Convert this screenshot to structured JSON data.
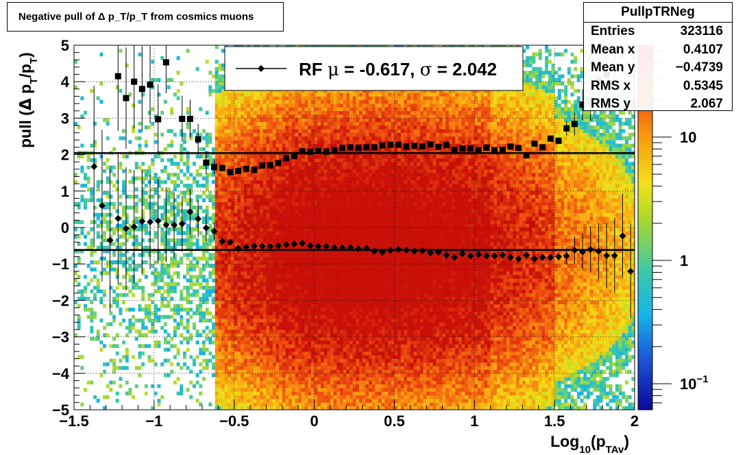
{
  "title": "Negative pull of Δ p_T/p_T from cosmics muons",
  "stats": {
    "name": "PullpTRNeg",
    "rows": [
      {
        "label": "Entries",
        "value": "323116"
      },
      {
        "label": "Mean x",
        "value": "0.4107"
      },
      {
        "label": "Mean y",
        "value": "−0.4739"
      },
      {
        "label": "RMS x",
        "value": "0.5345"
      },
      {
        "label": "RMS y",
        "value": "2.067"
      }
    ]
  },
  "legend": {
    "label_prefix": "RF",
    "mu_symbol": "μ",
    "mu_value": "= -0.617,",
    "sigma_symbol": "σ",
    "sigma_value": "=   2.042"
  },
  "colors": {
    "profile_markers": "#000000",
    "fit_lines": "#000000",
    "palette_low": "#0a0a9a",
    "palette_high": "#e02010"
  },
  "chart_data": {
    "type": "heatmap",
    "xlabel": "Log10(pTAv)",
    "ylabel": "pull (Δ pT/pT)",
    "xlim": [
      -1.5,
      2
    ],
    "ylim": [
      -5,
      5
    ],
    "log_z": true,
    "grid": true,
    "x_ticks": [
      "−1.5",
      "−1",
      "−0.5",
      "0",
      "0.5",
      "1",
      "1.5",
      "2"
    ],
    "y_ticks": [
      "−5",
      "−4",
      "−3",
      "−2",
      "−1",
      "0",
      "1",
      "2",
      "3",
      "4",
      "5"
    ],
    "z_ticks": [
      "10",
      "1",
      "10⁻¹"
    ],
    "horizontal_lines": [
      {
        "name": "sigma",
        "y": 2.042
      },
      {
        "name": "mu",
        "y": -0.617
      }
    ],
    "series": [
      {
        "name": "sigma",
        "marker": "square",
        "points": [
          [
            -1.225,
            4.15
          ],
          [
            -1.175,
            3.55
          ],
          [
            -1.125,
            4.0
          ],
          [
            -1.075,
            3.8
          ],
          [
            -1.025,
            3.92
          ],
          [
            -0.975,
            2.97
          ],
          [
            -0.925,
            4.53
          ],
          [
            -0.825,
            2.98
          ],
          [
            -0.775,
            2.98
          ],
          [
            -0.725,
            2.42
          ],
          [
            -0.675,
            1.78
          ],
          [
            -0.625,
            1.66
          ],
          [
            -0.575,
            1.63
          ],
          [
            -0.525,
            1.52
          ],
          [
            -0.475,
            1.55
          ],
          [
            -0.425,
            1.61
          ],
          [
            -0.375,
            1.58
          ],
          [
            -0.325,
            1.7
          ],
          [
            -0.275,
            1.71
          ],
          [
            -0.225,
            1.77
          ],
          [
            -0.175,
            1.9
          ],
          [
            -0.125,
            1.96
          ],
          [
            -0.075,
            2.09
          ],
          [
            -0.025,
            2.08
          ],
          [
            0.025,
            2.1
          ],
          [
            0.075,
            2.08
          ],
          [
            0.125,
            2.12
          ],
          [
            0.175,
            2.18
          ],
          [
            0.225,
            2.2
          ],
          [
            0.275,
            2.18
          ],
          [
            0.325,
            2.2
          ],
          [
            0.375,
            2.2
          ],
          [
            0.425,
            2.25
          ],
          [
            0.475,
            2.27
          ],
          [
            0.525,
            2.27
          ],
          [
            0.575,
            2.22
          ],
          [
            0.625,
            2.24
          ],
          [
            0.675,
            2.22
          ],
          [
            0.725,
            2.28
          ],
          [
            0.775,
            2.21
          ],
          [
            0.825,
            2.26
          ],
          [
            0.875,
            2.13
          ],
          [
            0.925,
            2.17
          ],
          [
            0.975,
            2.17
          ],
          [
            1.025,
            2.12
          ],
          [
            1.075,
            2.19
          ],
          [
            1.125,
            2.12
          ],
          [
            1.175,
            2.13
          ],
          [
            1.225,
            2.22
          ],
          [
            1.275,
            2.18
          ],
          [
            1.325,
            1.98
          ],
          [
            1.375,
            2.3
          ],
          [
            1.425,
            2.2
          ],
          [
            1.475,
            2.44
          ],
          [
            1.525,
            2.38
          ],
          [
            1.575,
            2.72
          ],
          [
            1.625,
            2.84
          ],
          [
            1.675,
            3.37
          ],
          [
            1.725,
            3.46
          ],
          [
            1.775,
            4.02
          ],
          [
            1.825,
            4.2
          ],
          [
            1.875,
            4.9
          ]
        ]
      },
      {
        "name": "mu",
        "marker": "diamond",
        "points": [
          [
            -1.375,
            1.67
          ],
          [
            -1.325,
            0.6
          ],
          [
            -1.275,
            -0.35
          ],
          [
            -1.225,
            0.25
          ],
          [
            -1.175,
            -0.03
          ],
          [
            -1.125,
            0.02
          ],
          [
            -1.075,
            0.17
          ],
          [
            -1.025,
            0.15
          ],
          [
            -0.975,
            0.18
          ],
          [
            -0.925,
            0.07
          ],
          [
            -0.875,
            0.07
          ],
          [
            -0.825,
            0.1
          ],
          [
            -0.775,
            0.43
          ],
          [
            -0.725,
            0.24
          ],
          [
            -0.675,
            -0.01
          ],
          [
            -0.625,
            -0.1
          ],
          [
            -0.575,
            -0.38
          ],
          [
            -0.525,
            -0.4
          ],
          [
            -0.475,
            -0.57
          ],
          [
            -0.425,
            -0.54
          ],
          [
            -0.375,
            -0.51
          ],
          [
            -0.325,
            -0.51
          ],
          [
            -0.275,
            -0.52
          ],
          [
            -0.225,
            -0.5
          ],
          [
            -0.175,
            -0.47
          ],
          [
            -0.125,
            -0.45
          ],
          [
            -0.075,
            -0.43
          ],
          [
            -0.025,
            -0.5
          ],
          [
            0.025,
            -0.52
          ],
          [
            0.075,
            -0.52
          ],
          [
            0.125,
            -0.55
          ],
          [
            0.175,
            -0.56
          ],
          [
            0.225,
            -0.55
          ],
          [
            0.275,
            -0.58
          ],
          [
            0.325,
            -0.57
          ],
          [
            0.375,
            -0.65
          ],
          [
            0.425,
            -0.68
          ],
          [
            0.475,
            -0.63
          ],
          [
            0.525,
            -0.6
          ],
          [
            0.575,
            -0.62
          ],
          [
            0.625,
            -0.65
          ],
          [
            0.675,
            -0.64
          ],
          [
            0.725,
            -0.7
          ],
          [
            0.775,
            -0.68
          ],
          [
            0.825,
            -0.76
          ],
          [
            0.875,
            -0.82
          ],
          [
            0.925,
            -0.72
          ],
          [
            0.975,
            -0.78
          ],
          [
            1.025,
            -0.74
          ],
          [
            1.075,
            -0.78
          ],
          [
            1.125,
            -0.78
          ],
          [
            1.175,
            -0.76
          ],
          [
            1.225,
            -0.82
          ],
          [
            1.275,
            -0.86
          ],
          [
            1.325,
            -0.76
          ],
          [
            1.375,
            -0.86
          ],
          [
            1.425,
            -0.82
          ],
          [
            1.475,
            -0.82
          ],
          [
            1.525,
            -0.8
          ],
          [
            1.575,
            -0.78
          ],
          [
            1.625,
            -0.62
          ],
          [
            1.675,
            -0.67
          ],
          [
            1.725,
            -0.6
          ],
          [
            1.775,
            -0.65
          ],
          [
            1.825,
            -0.77
          ],
          [
            1.875,
            -0.77
          ],
          [
            1.925,
            -0.23
          ],
          [
            1.975,
            -1.2
          ],
          [
            2.025,
            -0.38
          ]
        ]
      }
    ]
  }
}
